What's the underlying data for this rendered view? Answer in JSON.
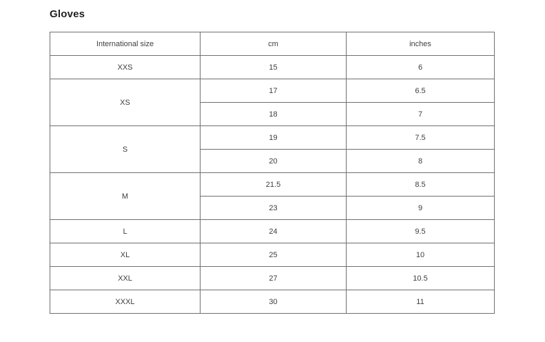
{
  "page": {
    "title": "Gloves"
  },
  "table": {
    "columns": [
      "International size",
      "cm",
      "inches"
    ],
    "rows": [
      {
        "size": "XXS",
        "measurements": [
          {
            "cm": "15",
            "inches": "6"
          }
        ]
      },
      {
        "size": "XS",
        "measurements": [
          {
            "cm": "17",
            "inches": "6.5"
          },
          {
            "cm": "18",
            "inches": "7"
          }
        ]
      },
      {
        "size": "S",
        "measurements": [
          {
            "cm": "19",
            "inches": "7.5"
          },
          {
            "cm": "20",
            "inches": "8"
          }
        ]
      },
      {
        "size": "M",
        "measurements": [
          {
            "cm": "21.5",
            "inches": "8.5"
          },
          {
            "cm": "23",
            "inches": "9"
          }
        ]
      },
      {
        "size": "L",
        "measurements": [
          {
            "cm": "24",
            "inches": "9.5"
          }
        ]
      },
      {
        "size": "XL",
        "measurements": [
          {
            "cm": "25",
            "inches": "10"
          }
        ]
      },
      {
        "size": "XXL",
        "measurements": [
          {
            "cm": "27",
            "inches": "10.5"
          }
        ]
      },
      {
        "size": "XXXL",
        "measurements": [
          {
            "cm": "30",
            "inches": "11"
          }
        ]
      }
    ]
  },
  "colors": {
    "border": "#6e6e6e",
    "text": "#3d3d3d",
    "title_text": "#1f1f1f",
    "background": "#ffffff"
  }
}
